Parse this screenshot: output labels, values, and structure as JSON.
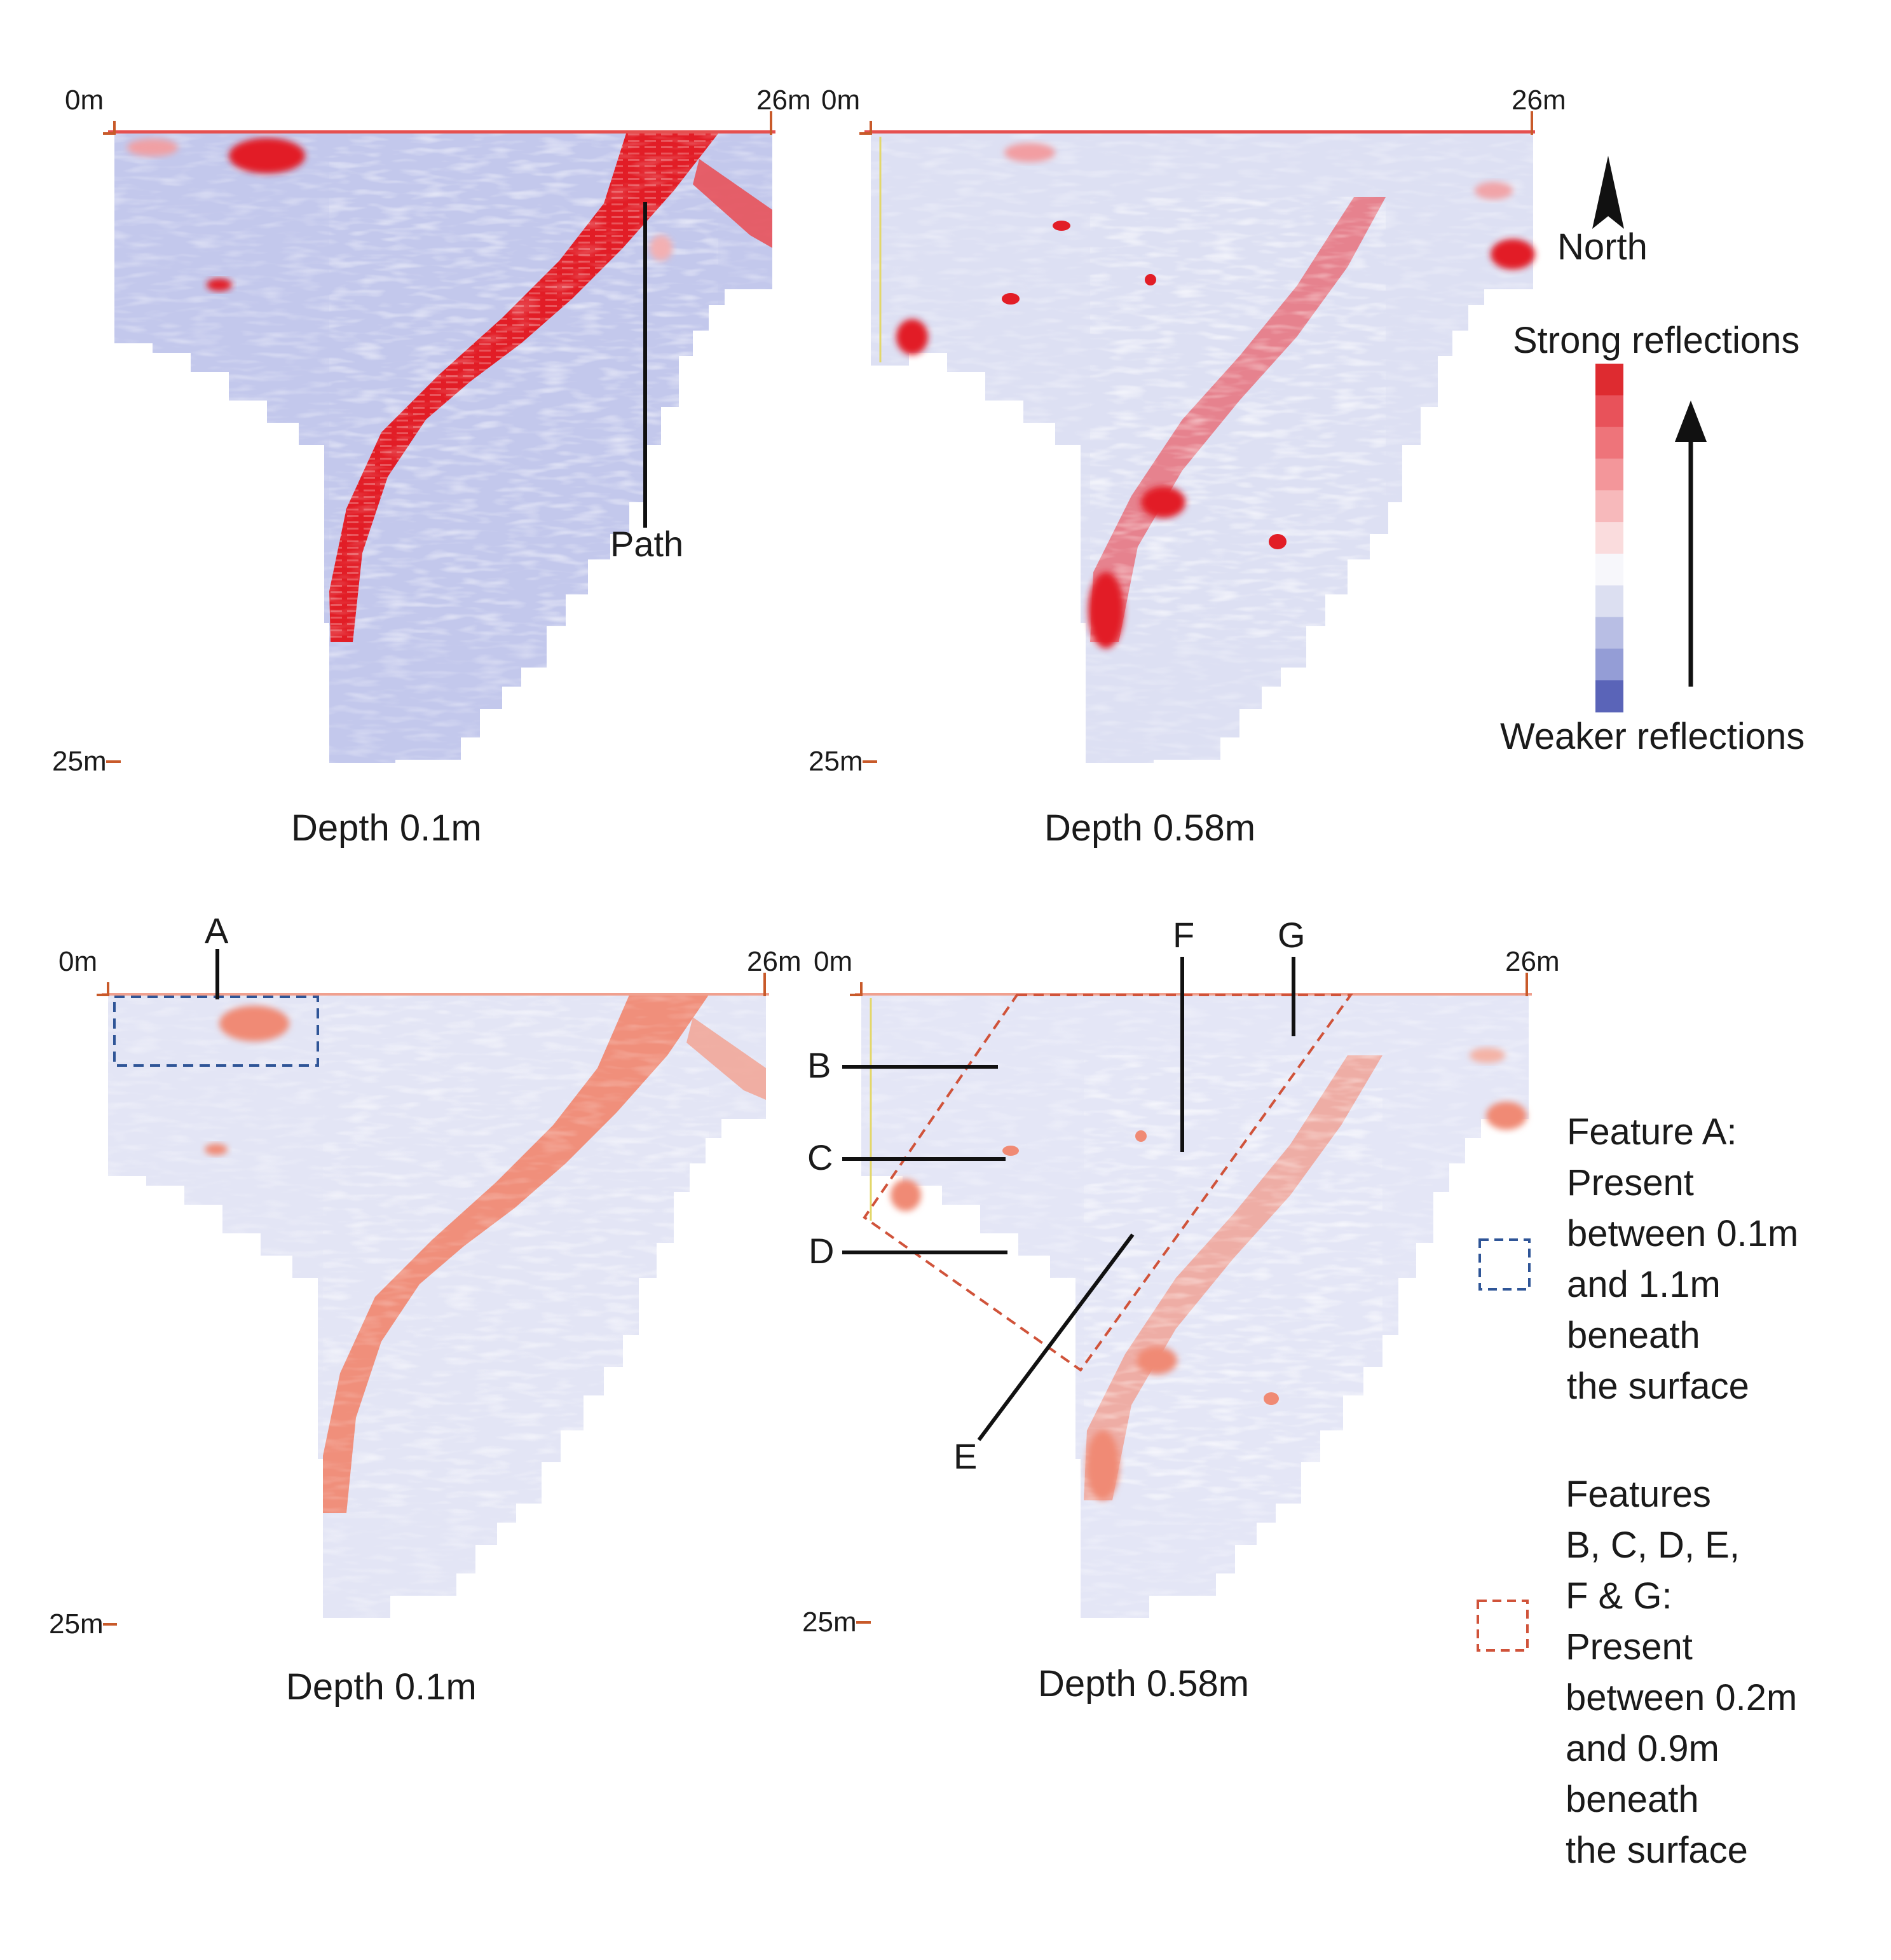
{
  "panels": [
    {
      "id": "tl",
      "axis_start": "0m",
      "axis_end": "26m",
      "axis_depth": "25m",
      "caption": "Depth 0.1m",
      "style": "strong"
    },
    {
      "id": "tr",
      "axis_start": "0m",
      "axis_end": "26m",
      "axis_depth": "25m",
      "caption": "Depth 0.58m",
      "style": "scatter"
    },
    {
      "id": "bl",
      "axis_start": "0m",
      "axis_end": "26m",
      "axis_depth": "25m",
      "caption": "Depth 0.1m",
      "style": "faded"
    },
    {
      "id": "br",
      "axis_start": "0m",
      "axis_end": "26m",
      "axis_depth": "25m",
      "caption": "Depth 0.58m",
      "style": "scatter-faded"
    }
  ],
  "annotations": {
    "path": "Path",
    "a": "A",
    "b": "B",
    "c": "C",
    "d": "D",
    "e": "E",
    "f": "F",
    "g": "G"
  },
  "legend": {
    "north": "North",
    "strong": "Strong reflections",
    "weak": "Weaker reflections",
    "scale_colors": [
      "#de2b30",
      "#e8525a",
      "#ee747a",
      "#f3969a",
      "#f7b9bb",
      "#fadcdd",
      "#f7f7fb",
      "#dcdff1",
      "#b8bee4",
      "#949dd6",
      "#5a64b8"
    ]
  },
  "key": {
    "feature_a_lines": [
      "Feature A:",
      "Present",
      "between 0.1m",
      "and 1.1m",
      "beneath",
      "the surface"
    ],
    "feature_bg_lines": [
      "Features",
      "B, C, D, E,",
      "F & G:",
      "Present",
      "between 0.2m",
      "and 0.9m",
      "beneath",
      "the surface"
    ],
    "colors": {
      "feature_a": "#2f5597",
      "feature_bg": "#d0533a"
    }
  },
  "colors": {
    "red": "#e21d26",
    "salmon": "#f08a74",
    "blue": "#c9cdee",
    "axis": "#c85a2a"
  }
}
